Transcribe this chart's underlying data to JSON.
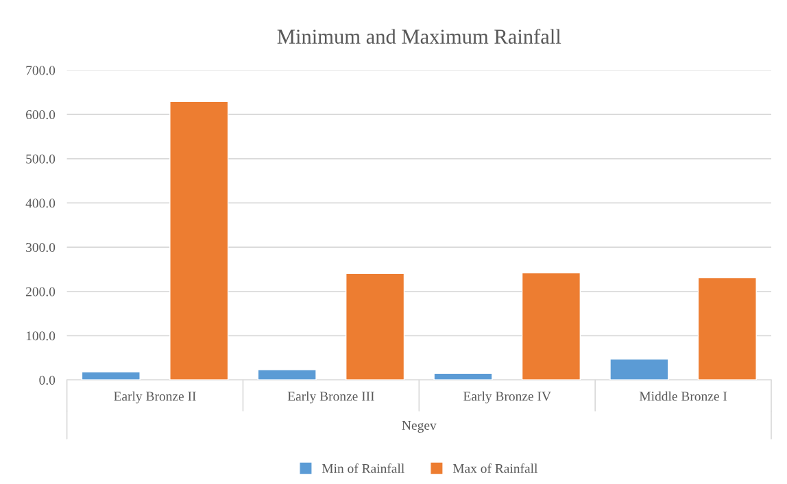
{
  "chart_data": {
    "type": "bar",
    "title": "Minimum and Maximum Rainfall",
    "xlabel": "Negev",
    "categories": [
      "Early Bronze II",
      "Early Bronze III",
      "Early Bronze IV",
      "Middle Bronze I"
    ],
    "series": [
      {
        "name": "Min of Rainfall",
        "color": "#5b9bd5",
        "values": [
          18,
          23,
          15,
          47
        ]
      },
      {
        "name": "Max of Rainfall",
        "color": "#ed7d31",
        "values": [
          629,
          241,
          242,
          231
        ]
      }
    ],
    "ylim": [
      0,
      700
    ],
    "yticks": [
      {
        "value": 0,
        "label": "0.0"
      },
      {
        "value": 100,
        "label": "100.0"
      },
      {
        "value": 200,
        "label": "200.0"
      },
      {
        "value": 300,
        "label": "300.0"
      },
      {
        "value": 400,
        "label": "400.0"
      },
      {
        "value": 500,
        "label": "500.0"
      },
      {
        "value": 600,
        "label": "600.0"
      },
      {
        "value": 700,
        "label": "700.0"
      }
    ],
    "grid": "y",
    "legend": "bottom"
  }
}
